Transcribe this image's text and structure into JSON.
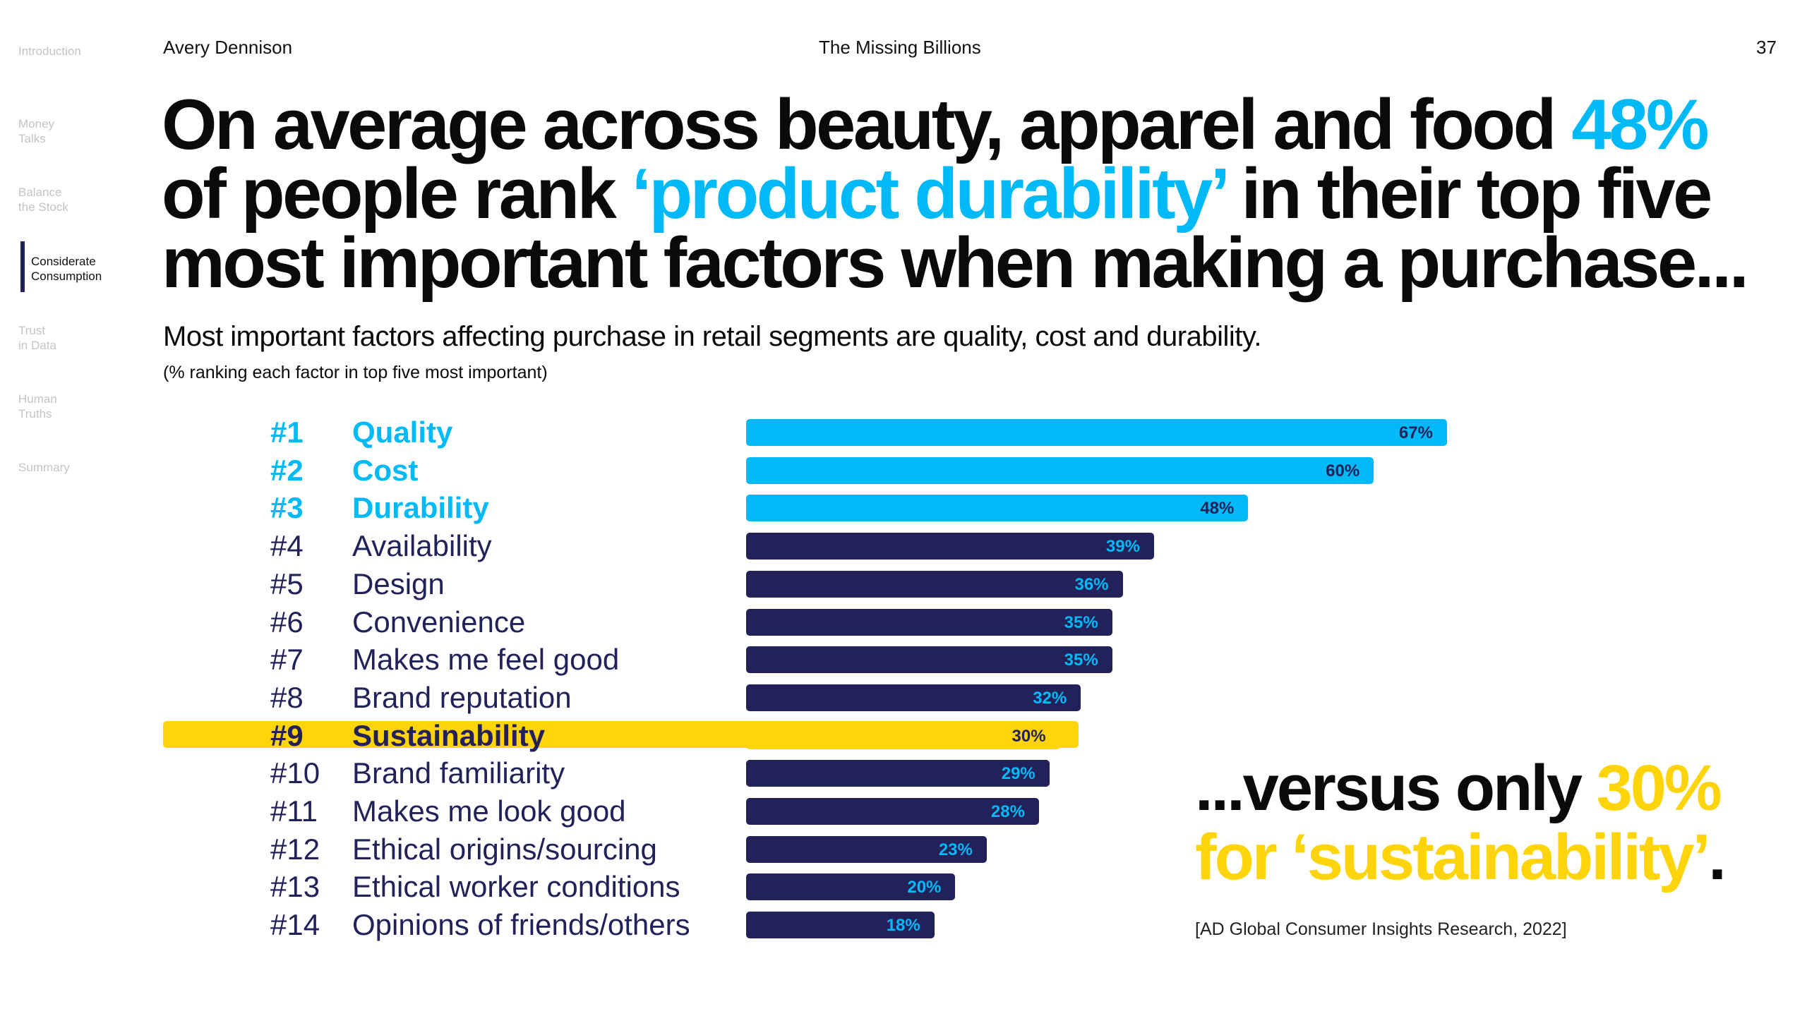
{
  "sidebar": {
    "items": [
      "Introduction",
      "Money\nTalks",
      "Balance\nthe Stock",
      "Considerate\nConsumption",
      "Trust\nin Data",
      "Human\nTruths",
      "Summary"
    ],
    "active": 3
  },
  "header": {
    "left": "Avery Dennison",
    "center": "The Missing Billions",
    "page": "37"
  },
  "headline": {
    "l1a": "On average across beauty, apparel and food ",
    "l1b": "48%",
    "l2a": "of people rank ",
    "l2b": "‘product durability’",
    "l2c": " in their top five",
    "l3": "most important factors when making a purchase..."
  },
  "subtitle": "Most important factors affecting purchase in retail segments are quality, cost and durability.",
  "note": "(% ranking each factor in top five most important)",
  "callout": {
    "a": "...versus only ",
    "b": "30%",
    "c": "for ‘sustainability’",
    "d": "."
  },
  "citation": "[AD Global Consumer Insights Research, 2022]",
  "colors": {
    "cyan": "#00b9f7",
    "navy": "#22215a",
    "yellow": "#ffd40a"
  },
  "chart_data": {
    "type": "bar",
    "orientation": "horizontal",
    "title": "Most important factors affecting purchase",
    "unit": "%",
    "categories": [
      "Quality",
      "Cost",
      "Durability",
      "Availability",
      "Design",
      "Convenience",
      "Makes me feel good",
      "Brand reputation",
      "Sustainability",
      "Brand familiarity",
      "Makes me look good",
      "Ethical origins/sourcing",
      "Ethical worker conditions",
      "Opinions of friends/others"
    ],
    "ranks": [
      "#1",
      "#2",
      "#3",
      "#4",
      "#5",
      "#6",
      "#7",
      "#8",
      "#9",
      "#10",
      "#11",
      "#12",
      "#13",
      "#14"
    ],
    "values": [
      67,
      60,
      48,
      39,
      36,
      35,
      35,
      32,
      30,
      29,
      28,
      23,
      20,
      18
    ],
    "labels": [
      "67%",
      "60%",
      "48%",
      "39%",
      "36%",
      "35%",
      "35%",
      "32%",
      "30%",
      "29%",
      "28%",
      "23%",
      "20%",
      "18%"
    ],
    "highlight_top": 3,
    "highlight_index": 8
  }
}
